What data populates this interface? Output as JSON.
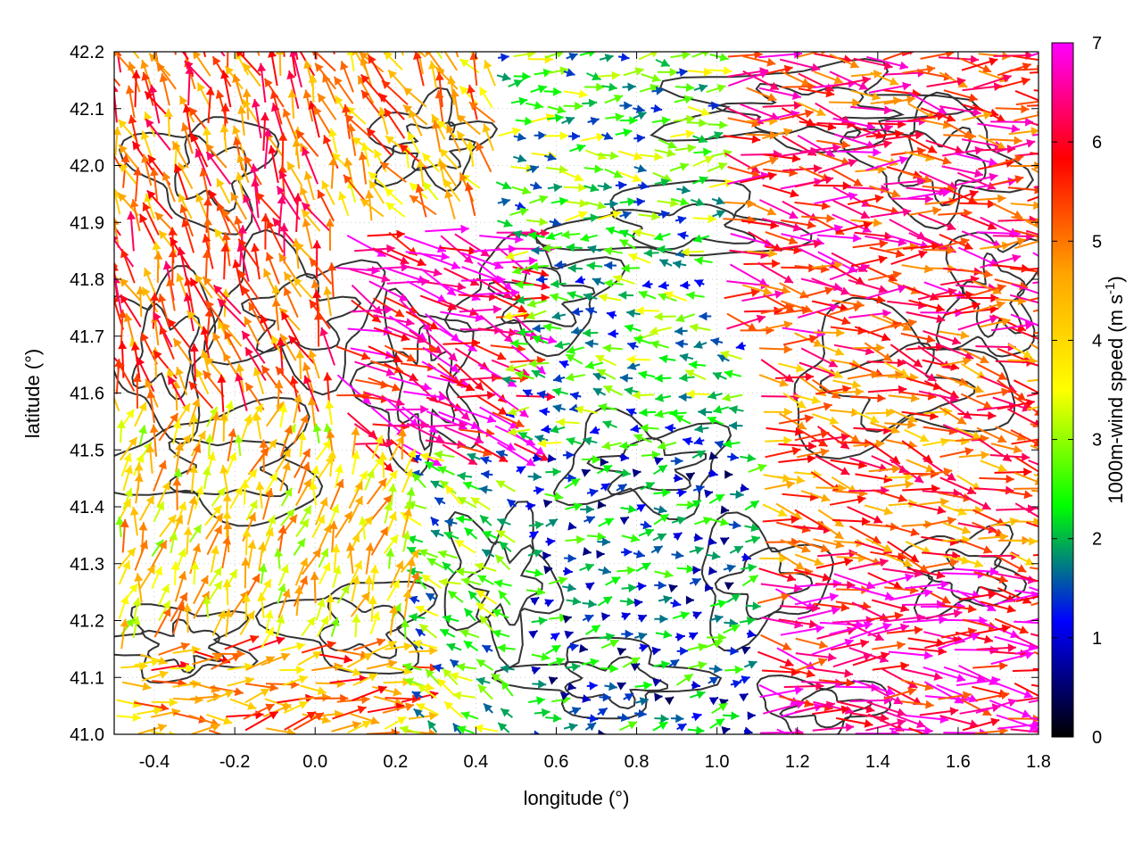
{
  "chart_data": {
    "type": "vector_field_with_contours",
    "xlabel": "longitude (°)",
    "ylabel": "latitude (°)",
    "xlim": [
      -0.5,
      1.8
    ],
    "ylim": [
      41.0,
      42.2
    ],
    "xticks": [
      -0.4,
      -0.2,
      0.0,
      0.2,
      0.4,
      0.6,
      0.8,
      1.0,
      1.2,
      1.4,
      1.6,
      1.8
    ],
    "xtick_labels": [
      "-0.4",
      "-0.2",
      "0.0",
      "0.2",
      "0.4",
      "0.6",
      "0.8",
      "1.0",
      "1.2",
      "1.4",
      "1.6",
      "1.8"
    ],
    "yticks": [
      41.0,
      41.1,
      41.2,
      41.3,
      41.4,
      41.5,
      41.6,
      41.7,
      41.8,
      41.9,
      42.0,
      42.1,
      42.2
    ],
    "ytick_labels": [
      "41.0",
      "41.1",
      "41.2",
      "41.3",
      "41.4",
      "41.5",
      "41.6",
      "41.7",
      "41.8",
      "41.9",
      "42.0",
      "42.1",
      "42.2"
    ],
    "grid": true,
    "colorbar": {
      "label_main": "1000m-wind speed (m s",
      "label_sup": "-1",
      "label_close": ")",
      "range": [
        0,
        7
      ],
      "ticks": [
        0,
        1,
        2,
        3,
        4,
        5,
        6,
        7
      ],
      "tick_labels": [
        "0",
        "1",
        "2",
        "3",
        "4",
        "5",
        "6",
        "7"
      ],
      "colors": [
        "#000000",
        "#0000ff",
        "#00ff00",
        "#ffff00",
        "#ffa500",
        "#ff0000",
        "#ff00ff"
      ]
    },
    "regions": [
      {
        "lon": [
          -0.5,
          0.05
        ],
        "lat": [
          41.55,
          42.2
        ],
        "dir_deg": 110,
        "speed": 5.2
      },
      {
        "lon": [
          -0.5,
          0.25
        ],
        "lat": [
          41.15,
          41.55
        ],
        "dir_deg": 75,
        "speed": 4.0
      },
      {
        "lon": [
          -0.5,
          0.3
        ],
        "lat": [
          41.0,
          41.15
        ],
        "dir_deg": 5,
        "speed": 4.8
      },
      {
        "lon": [
          0.05,
          0.5
        ],
        "lat": [
          41.5,
          41.9
        ],
        "dir_deg": -20,
        "speed": 6.5
      },
      {
        "lon": [
          0.05,
          0.45
        ],
        "lat": [
          41.9,
          42.2
        ],
        "dir_deg": 120,
        "speed": 4.5
      },
      {
        "lon": [
          0.45,
          1.0
        ],
        "lat": [
          41.9,
          42.2
        ],
        "dir_deg": 0,
        "speed": 2.5
      },
      {
        "lon": [
          0.5,
          1.1
        ],
        "lat": [
          41.5,
          41.9
        ],
        "dir_deg": 175,
        "speed": 2.3
      },
      {
        "lon": [
          0.5,
          1.1
        ],
        "lat": [
          41.0,
          41.5
        ],
        "dir_deg": 10,
        "speed": 1.6
      },
      {
        "lon": [
          0.25,
          0.5
        ],
        "lat": [
          41.0,
          41.5
        ],
        "dir_deg": 150,
        "speed": 2.5
      },
      {
        "lon": [
          1.0,
          1.8
        ],
        "lat": [
          41.7,
          42.2
        ],
        "dir_deg": -5,
        "speed": 5.8
      },
      {
        "lon": [
          1.1,
          1.8
        ],
        "lat": [
          41.3,
          41.7
        ],
        "dir_deg": -12,
        "speed": 5.2
      },
      {
        "lon": [
          1.1,
          1.8
        ],
        "lat": [
          41.0,
          41.3
        ],
        "dir_deg": -4,
        "speed": 6.3
      }
    ]
  }
}
